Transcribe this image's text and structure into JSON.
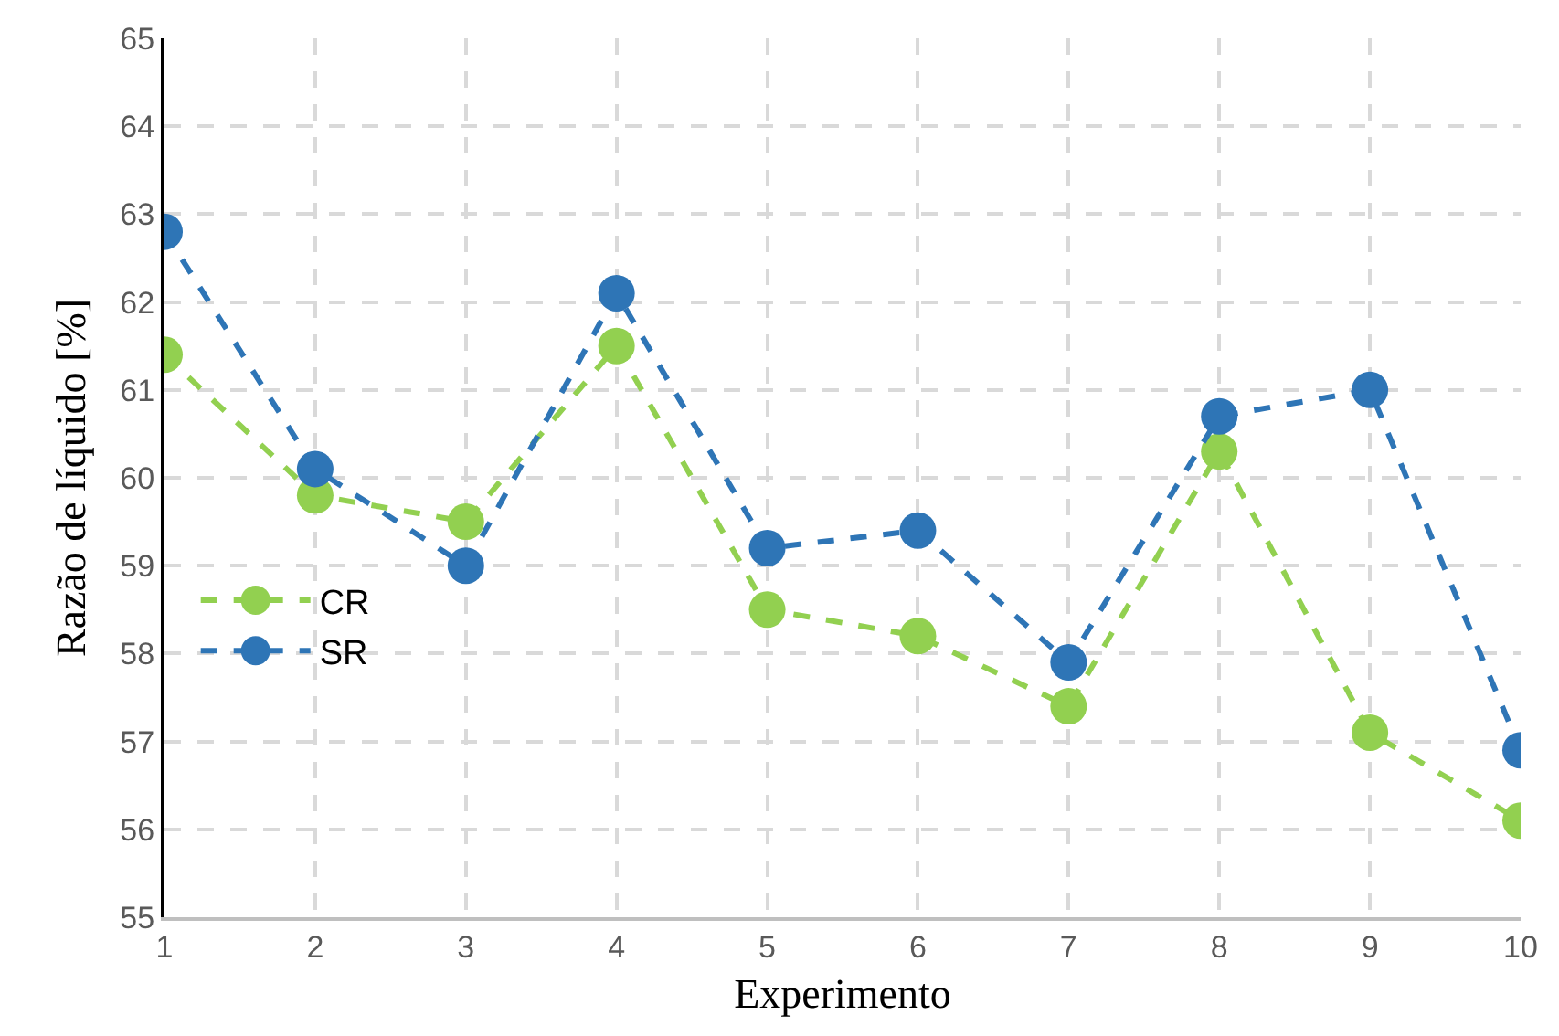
{
  "chart_data": {
    "type": "line",
    "xlabel": "Experimento",
    "ylabel": "Razão de líquido [%]",
    "x": [
      1,
      2,
      3,
      4,
      5,
      6,
      7,
      8,
      9,
      10
    ],
    "series": [
      {
        "name": "CR",
        "color": "#92d050",
        "values": [
          61.4,
          59.8,
          59.5,
          61.5,
          58.5,
          58.2,
          57.4,
          60.3,
          57.1,
          56.1
        ]
      },
      {
        "name": "SR",
        "color": "#2e75b6",
        "values": [
          62.8,
          60.1,
          59.0,
          62.1,
          59.2,
          59.4,
          57.9,
          60.7,
          61.0,
          56.9
        ]
      }
    ],
    "xlim": [
      1,
      10
    ],
    "xticks": [
      1,
      2,
      3,
      4,
      5,
      6,
      7,
      8,
      9,
      10
    ],
    "ylim": [
      55,
      65
    ],
    "yticks": [
      55,
      56,
      57,
      58,
      59,
      60,
      61,
      62,
      63,
      64,
      65
    ],
    "grid": true,
    "legend": "left",
    "marker": "circle",
    "line_style": "dashed"
  }
}
